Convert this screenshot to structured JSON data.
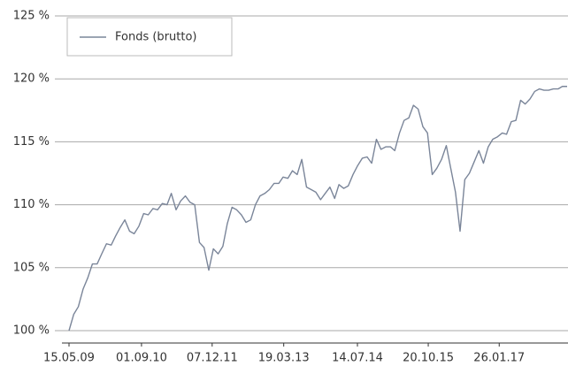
{
  "chart_data": {
    "type": "line",
    "x": [
      "15.05.09",
      "15.06.09",
      "15.07.09",
      "15.08.09",
      "15.09.09",
      "15.10.09",
      "15.11.09",
      "15.12.09",
      "15.01.10",
      "15.02.10",
      "15.03.10",
      "15.04.10",
      "15.05.10",
      "15.06.10",
      "15.07.10",
      "15.08.10",
      "15.09.10",
      "15.10.10",
      "15.11.10",
      "15.12.10",
      "15.01.11",
      "15.02.11",
      "15.03.11",
      "15.04.11",
      "15.05.11",
      "15.06.11",
      "15.07.11",
      "15.08.11",
      "15.09.11",
      "15.10.11",
      "15.11.11",
      "15.12.11",
      "15.01.12",
      "15.02.12",
      "15.03.12",
      "15.04.12",
      "15.05.12",
      "15.06.12",
      "15.07.12",
      "15.08.12",
      "15.09.12",
      "15.10.12",
      "15.11.12",
      "15.12.12",
      "15.01.13",
      "15.02.13",
      "15.03.13",
      "15.04.13",
      "15.05.13",
      "15.06.13",
      "15.07.13",
      "15.08.13",
      "15.09.13",
      "15.10.13",
      "15.11.13",
      "15.12.13",
      "15.01.14",
      "15.02.14",
      "15.03.14",
      "15.04.14",
      "15.05.14",
      "15.06.14",
      "15.07.14",
      "15.08.14",
      "15.09.14",
      "15.10.14",
      "15.11.14",
      "15.12.14",
      "15.01.15",
      "15.02.15",
      "15.03.15",
      "15.04.15",
      "15.05.15",
      "15.06.15",
      "15.07.15",
      "15.08.15",
      "15.09.15",
      "15.10.15",
      "15.11.15",
      "15.12.15",
      "15.01.16",
      "15.02.16",
      "15.03.16",
      "15.04.16",
      "15.05.16",
      "15.06.16",
      "15.07.16",
      "15.08.16",
      "15.09.16",
      "15.10.16",
      "15.11.16",
      "15.12.16",
      "15.01.17",
      "15.02.17",
      "15.03.17",
      "15.04.17",
      "15.05.17",
      "15.06.17",
      "15.07.17",
      "15.08.17",
      "15.09.17",
      "15.10.17",
      "15.11.17",
      "15.12.17",
      "15.01.18",
      "15.02.18",
      "15.03.18",
      "15.04.18"
    ],
    "series": [
      {
        "name": "Fonds (brutto)",
        "color": "#7a8599",
        "values": [
          100.0,
          101.3,
          101.9,
          103.3,
          104.2,
          105.3,
          105.3,
          106.1,
          106.9,
          106.8,
          107.5,
          108.2,
          108.8,
          107.9,
          107.7,
          108.3,
          109.3,
          109.2,
          109.7,
          109.6,
          110.1,
          110.0,
          110.9,
          109.6,
          110.3,
          110.7,
          110.2,
          110.0,
          107.0,
          106.6,
          104.8,
          106.5,
          106.1,
          106.7,
          108.5,
          109.8,
          109.6,
          109.2,
          108.6,
          108.8,
          110.0,
          110.7,
          110.9,
          111.2,
          111.7,
          111.7,
          112.2,
          112.1,
          112.7,
          112.4,
          113.6,
          111.4,
          111.2,
          111.0,
          110.4,
          110.9,
          111.4,
          110.5,
          111.6,
          111.3,
          111.5,
          112.4,
          113.1,
          113.7,
          113.8,
          113.3,
          115.2,
          114.4,
          114.6,
          114.6,
          114.3,
          115.7,
          116.7,
          116.9,
          117.9,
          117.6,
          116.2,
          115.7,
          112.4,
          112.9,
          113.6,
          114.7,
          112.9,
          111.0,
          107.9,
          112.0,
          112.5,
          113.4,
          114.3,
          113.3,
          114.6,
          115.2,
          115.4,
          115.7,
          115.6,
          116.6,
          116.7,
          118.3,
          118.0,
          118.4,
          119.0,
          119.2,
          119.1,
          119.1,
          119.2,
          119.2,
          119.4,
          119.4
        ]
      }
    ],
    "xlim": [
      "15.05.09",
      "15.04.18"
    ],
    "xticks": [
      "15.05.09",
      "01.09.10",
      "07.12.11",
      "19.03.13",
      "14.07.14",
      "20.10.15",
      "26.01.17"
    ],
    "ylim": [
      100,
      125
    ],
    "yticks": [
      {
        "value": 100,
        "label": "100 %"
      },
      {
        "value": 105,
        "label": "105 %"
      },
      {
        "value": 110,
        "label": "110 %"
      },
      {
        "value": 115,
        "label": "115 %"
      },
      {
        "value": 120,
        "label": "120 %"
      },
      {
        "value": 125,
        "label": "125 %"
      }
    ],
    "grid": true,
    "legend": "upper left"
  }
}
